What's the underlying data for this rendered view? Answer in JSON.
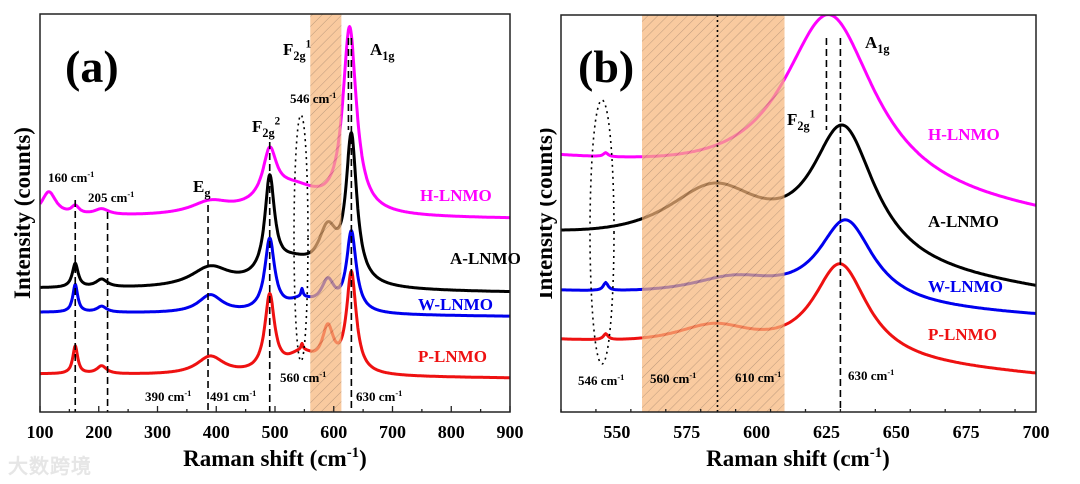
{
  "watermark": "大数跨境",
  "chart_data": [
    {
      "panel_label": "(a)",
      "type": "line",
      "xlabel": {
        "text": "Raman shift (cm",
        "sup": "-1",
        "tail": ")"
      },
      "ylabel": "Intensity (counts)",
      "xlim": [
        100,
        900
      ],
      "xticks": [
        100,
        200,
        300,
        400,
        500,
        600,
        700,
        800,
        900
      ],
      "ylim": [
        0,
        100
      ],
      "shaded_region": [
        560,
        613
      ],
      "reference_lines_dashed": [
        160,
        215,
        386,
        491,
        625,
        630
      ],
      "reference_lines_dotted": [],
      "series": [
        {
          "name": "H-LNMO",
          "color": "#ff00ff",
          "baseline": [
            49,
            48.5
          ],
          "peaks": [
            [
              115,
              6,
              15
            ],
            [
              160,
              2,
              8
            ],
            [
              205,
              1.5,
              15
            ],
            [
              390,
              3,
              40
            ],
            [
              491,
              12,
              14
            ],
            [
              627,
              46,
              14
            ],
            [
              530,
              7,
              60
            ]
          ]
        },
        {
          "name": "A-LNMO",
          "color": "#000000",
          "baseline": [
            31,
            30
          ],
          "peaks": [
            [
              160,
              6,
              6
            ],
            [
              205,
              2,
              12
            ],
            [
              390,
              5,
              40
            ],
            [
              491,
              24,
              10
            ],
            [
              590,
              12,
              20
            ],
            [
              630,
              36,
              11
            ],
            [
              530,
              6,
              50
            ]
          ]
        },
        {
          "name": "W-LNMO",
          "color": "#0000ee",
          "baseline": [
            25,
            24
          ],
          "peaks": [
            [
              160,
              7,
              5
            ],
            [
              205,
              1.5,
              10
            ],
            [
              390,
              4.5,
              25
            ],
            [
              491,
              18,
              10
            ],
            [
              590,
              7,
              14
            ],
            [
              630,
              20,
              10
            ],
            [
              545,
              3,
              30
            ],
            [
              546,
              2,
              2
            ]
          ]
        },
        {
          "name": "P-LNMO",
          "color": "#ee1111",
          "baseline": [
            9.5,
            8.5
          ],
          "peaks": [
            [
              160,
              7,
              5
            ],
            [
              205,
              2,
              10
            ],
            [
              390,
              4.5,
              28
            ],
            [
              491,
              19,
              10
            ],
            [
              590,
              10,
              12
            ],
            [
              630,
              25,
              10
            ],
            [
              545,
              5,
              30
            ],
            [
              546,
              1.5,
              2
            ]
          ]
        }
      ],
      "annotations": [
        {
          "text": "F",
          "sub": "2g",
          "sup": "1"
        },
        {
          "text": "A",
          "sub": "1g"
        },
        {
          "text": "546 cm",
          "sup": "-1"
        },
        {
          "text": "F",
          "sub": "2g",
          "sup": "2"
        },
        {
          "text": "160 cm",
          "sup": "-1"
        },
        {
          "text": "205 cm",
          "sup": "-1"
        },
        {
          "text": "E",
          "sub": "g"
        },
        {
          "text": "390 cm",
          "sup": "-1"
        },
        {
          "text": "491 cm",
          "sup": "-1"
        },
        {
          "text": "560 cm",
          "sup": "-1"
        },
        {
          "text": "630 cm",
          "sup": "-1"
        }
      ]
    },
    {
      "panel_label": "(b)",
      "type": "line",
      "xlabel": {
        "text": "Raman shift (cm",
        "sup": "-1",
        "tail": ")"
      },
      "ylabel": "Intensity (counts)",
      "xlim": [
        530,
        700
      ],
      "xticks": [
        550,
        575,
        600,
        625,
        650,
        675,
        700
      ],
      "ylim": [
        0,
        100
      ],
      "shaded_region": [
        559,
        610
      ],
      "reference_lines_dashed": [
        625,
        630
      ],
      "reference_lines_dotted": [
        586
      ],
      "series": [
        {
          "name": "H-LNMO",
          "color": "#ff00ff",
          "baseline": [
            63,
            49
          ],
          "peaks": [
            [
              626,
              45,
              20
            ],
            [
              546,
              1,
              1
            ]
          ]
        },
        {
          "name": "A-LNMO",
          "color": "#000000",
          "baseline": [
            43,
            30
          ],
          "peaks": [
            [
              585,
              16,
              22
            ],
            [
              631,
              34,
              14
            ]
          ]
        },
        {
          "name": "W-LNMO",
          "color": "#0000ee",
          "baseline": [
            30,
            24
          ],
          "peaks": [
            [
              592,
              5,
              20
            ],
            [
              632,
              21,
              12
            ],
            [
              546,
              2,
              1
            ]
          ]
        },
        {
          "name": "P-LNMO",
          "color": "#ee1111",
          "baseline": [
            17.5,
            9
          ],
          "peaks": [
            [
              585,
              6,
              18
            ],
            [
              630,
              24,
              12
            ],
            [
              546,
              1.5,
              1
            ]
          ]
        }
      ],
      "annotations": [
        {
          "text": "A",
          "sub": "1g"
        },
        {
          "text": "F",
          "sub": "2g",
          "sup": "1"
        },
        {
          "text": "546 cm",
          "sup": "-1"
        },
        {
          "text": "560 cm",
          "sup": "-1"
        },
        {
          "text": "610 cm",
          "sup": "-1"
        },
        {
          "text": "630 cm",
          "sup": "-1"
        }
      ]
    }
  ]
}
